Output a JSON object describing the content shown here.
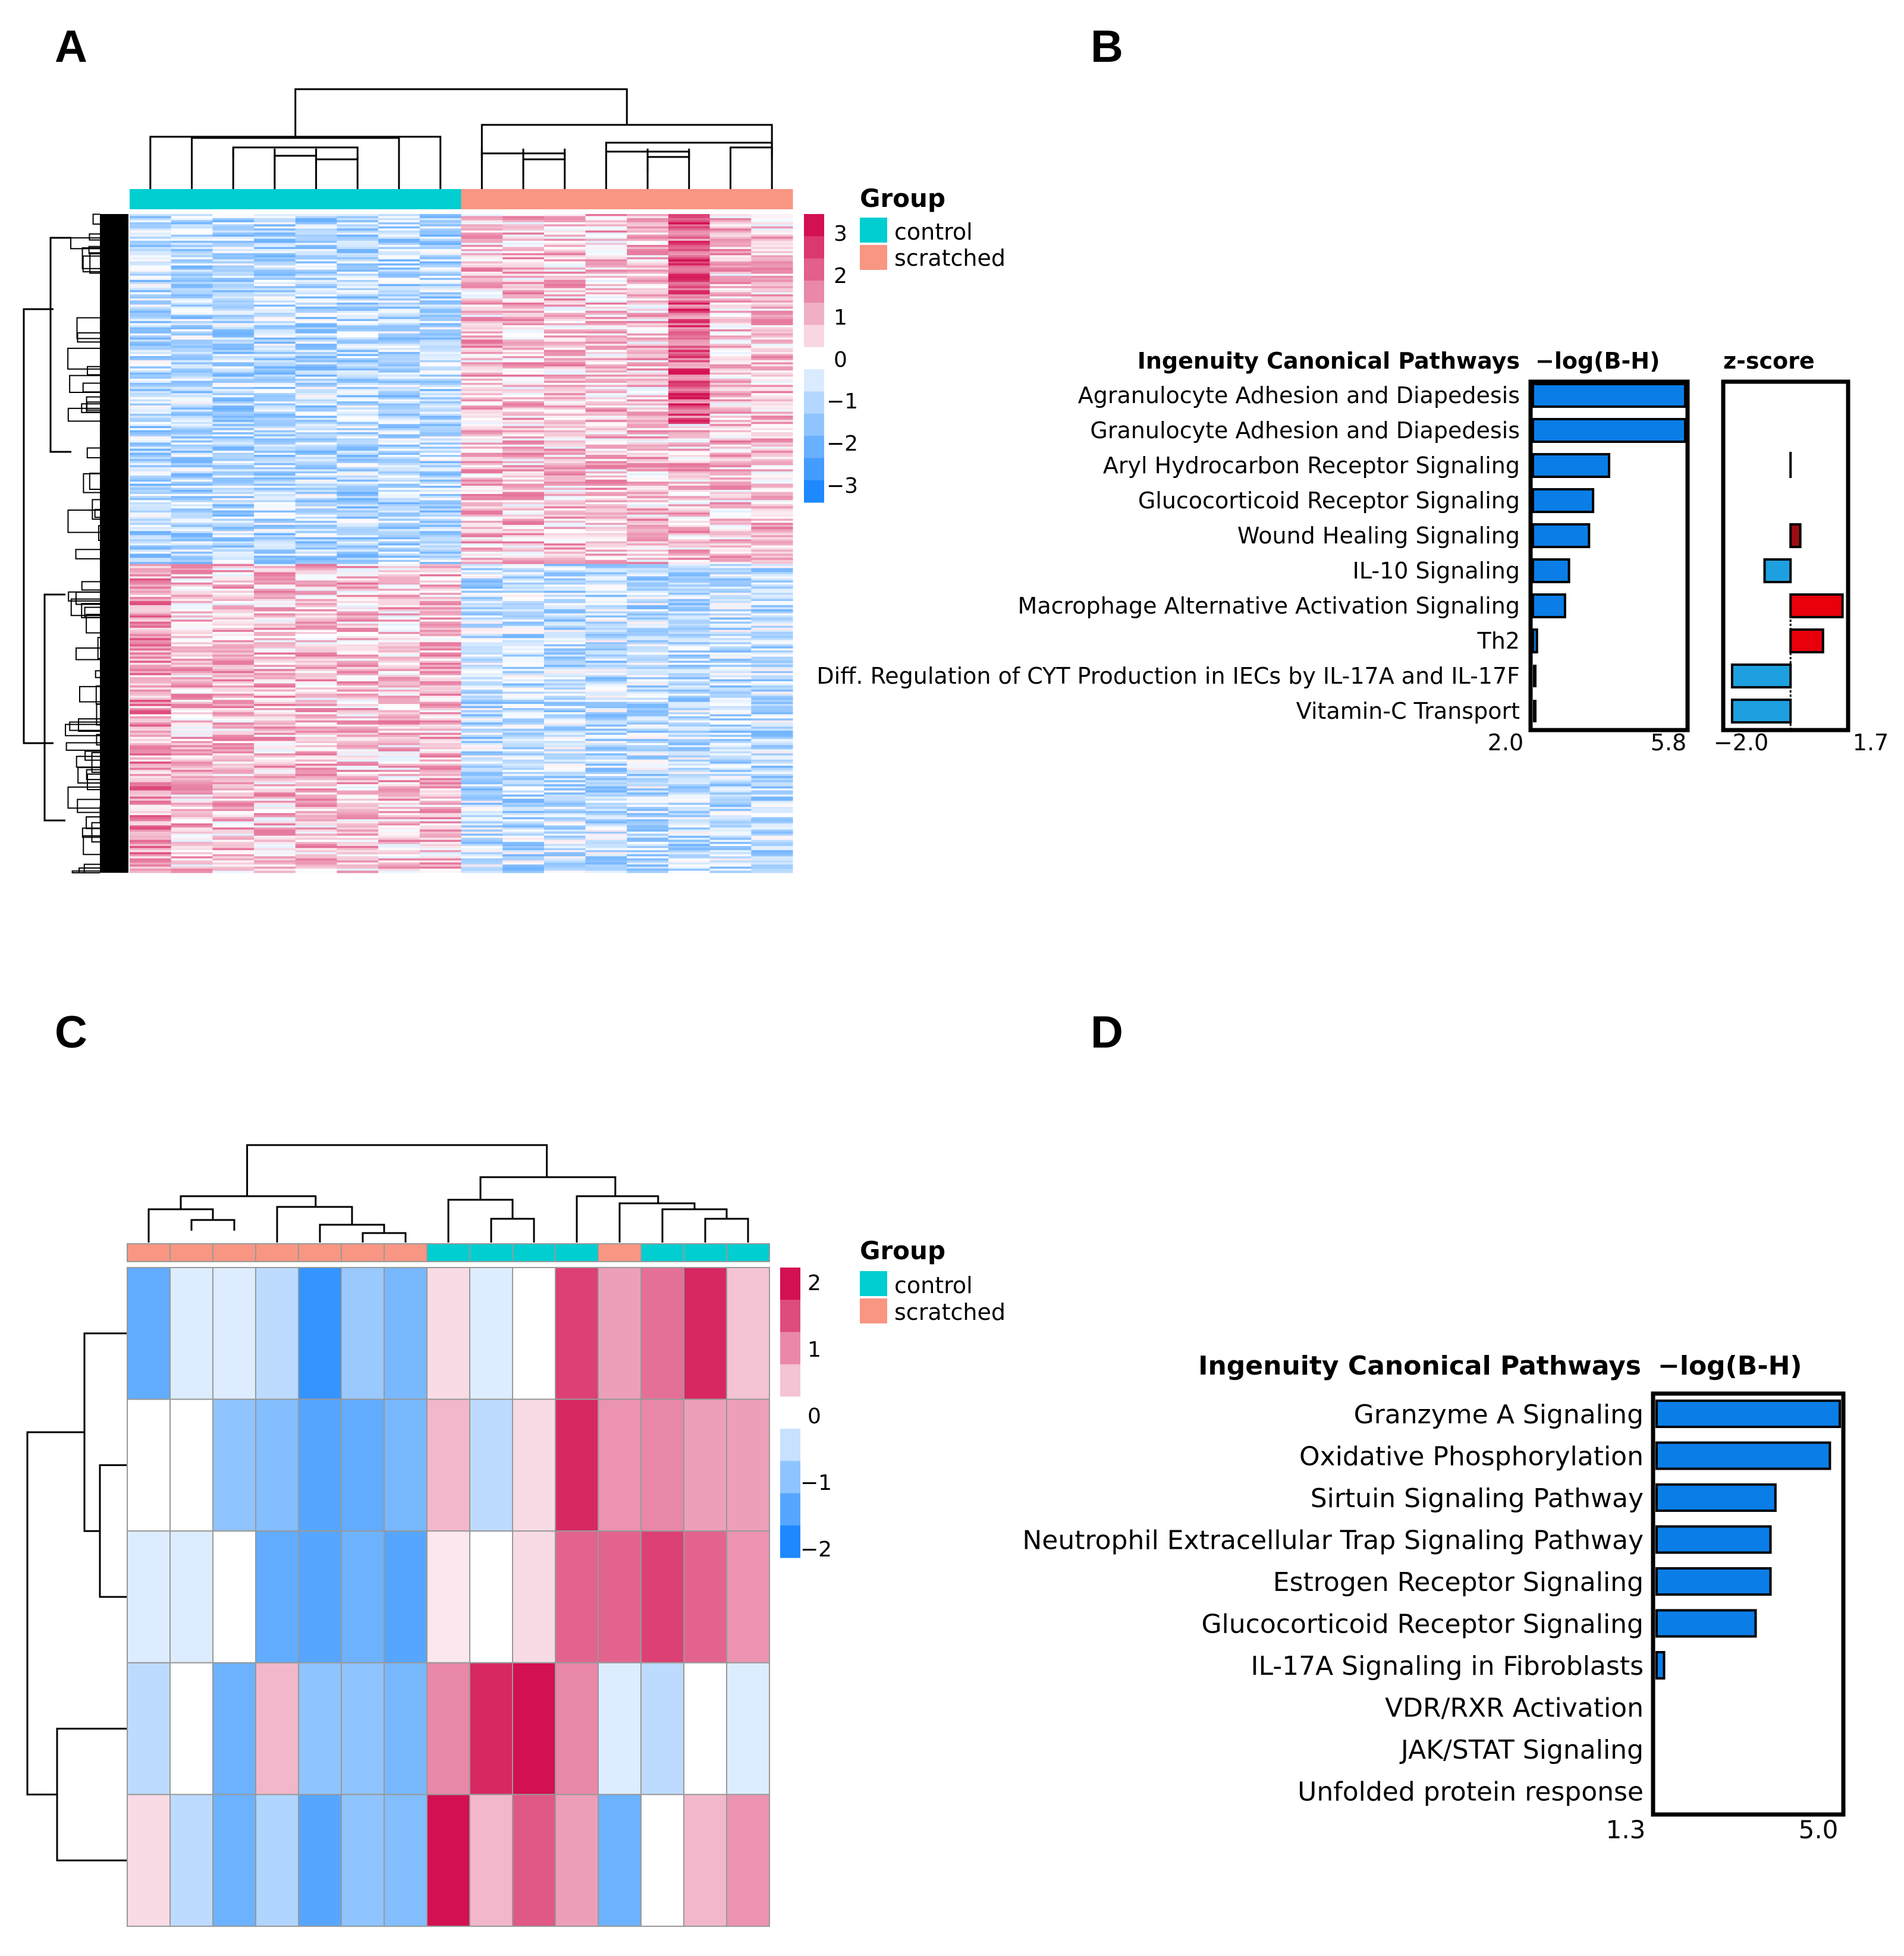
{
  "figure": {
    "panel_letters": [
      "A",
      "B",
      "C",
      "D"
    ]
  },
  "colors": {
    "control": "#00CED1",
    "scratched": "#F89683",
    "bar_blue": "#0A7DE6",
    "bar_red": "#E8000B",
    "bar_dark_red": "#9B0E14",
    "bar_cyan": "#1EA0E0",
    "heat_low": "#1E88FF",
    "heat_mid": "#FFFFFF",
    "heat_high": "#D31051"
  },
  "chart_data": [
    {
      "panel": "A",
      "type": "heatmap",
      "title": "",
      "legend_title": "Group",
      "legend_entries": [
        "control",
        "scratched"
      ],
      "column_groups": [
        "control",
        "control",
        "control",
        "control",
        "control",
        "control",
        "control",
        "control",
        "scratched",
        "scratched",
        "scratched",
        "scratched",
        "scratched",
        "scratched",
        "scratched",
        "scratched"
      ],
      "n_rows": 320,
      "color_scale_ticks": [
        "3",
        "2",
        "1",
        "0",
        "−1",
        "−2",
        "−3"
      ],
      "color_range": [
        -3,
        3
      ],
      "pattern": "upper ~53% of rows: control low / scratched high; lower ~47% of rows: control high / scratched low"
    },
    {
      "panel": "B",
      "type": "bar",
      "header": "Ingenuity Canonical Pathways",
      "categories": [
        "Agranulocyte Adhesion and Diapedesis",
        "Granulocyte Adhesion and Diapedesis",
        "Aryl Hydrocarbon Receptor Signaling",
        "Glucocorticoid Receptor Signaling",
        "Wound Healing Signaling",
        "IL-10 Signaling",
        "Macrophage Alternative Activation Signaling",
        "Th2",
        "Diff. Regulation of CYT Production in IECs by IL-17A and IL-17F",
        "Vitamin-C Transport"
      ],
      "series": [
        {
          "name": "−log(B-H)",
          "values": [
            5.8,
            5.8,
            3.9,
            3.5,
            3.4,
            2.9,
            2.8,
            2.1,
            2.0,
            2.0
          ],
          "xlim": [
            2.0,
            5.8
          ],
          "tick_labels": [
            "2.0",
            "5.8"
          ]
        },
        {
          "name": "z-score",
          "values": [
            null,
            null,
            0.0,
            null,
            0.3,
            -0.8,
            1.6,
            1.0,
            -1.8,
            -1.8
          ],
          "xlim": [
            -2.0,
            1.7
          ],
          "tick_labels": [
            "−2.0",
            "1.7"
          ]
        }
      ]
    },
    {
      "panel": "C",
      "type": "heatmap",
      "title": "",
      "legend_title": "Group",
      "legend_entries": [
        "control",
        "scratched"
      ],
      "column_groups": [
        "scratched",
        "scratched",
        "scratched",
        "scratched",
        "scratched",
        "scratched",
        "scratched",
        "control",
        "control",
        "control",
        "control",
        "scratched",
        "control",
        "control",
        "control"
      ],
      "color_scale_ticks": [
        "2",
        "1",
        "0",
        "−1",
        "−2"
      ],
      "color_range": [
        -2,
        2
      ],
      "values": [
        [
          -1.4,
          -0.3,
          -0.3,
          -0.6,
          -1.8,
          -0.9,
          -1.2,
          0.3,
          -0.3,
          0.0,
          1.6,
          0.8,
          1.2,
          1.8,
          0.5
        ],
        [
          0.0,
          0.0,
          -1.0,
          -1.1,
          -1.5,
          -1.4,
          -1.2,
          0.6,
          -0.6,
          0.3,
          1.8,
          0.9,
          1.0,
          0.8,
          0.8
        ],
        [
          -0.3,
          -0.3,
          0.0,
          -1.4,
          -1.5,
          -1.3,
          -1.5,
          0.2,
          0.0,
          0.3,
          1.3,
          1.3,
          1.6,
          1.3,
          0.9
        ],
        [
          -0.6,
          0.0,
          -1.3,
          0.6,
          -1.0,
          -1.0,
          -1.2,
          1.0,
          1.8,
          2.1,
          1.0,
          -0.3,
          -0.6,
          0.0,
          -0.3
        ],
        [
          0.3,
          -0.6,
          -1.3,
          -0.7,
          -1.5,
          -1.0,
          -1.1,
          2.1,
          0.6,
          1.4,
          0.8,
          -1.3,
          0.0,
          0.6,
          0.9
        ]
      ]
    },
    {
      "panel": "D",
      "type": "bar",
      "header": "Ingenuity Canonical Pathways",
      "categories": [
        "Granzyme A Signaling",
        "Oxidative Phosphorylation",
        "Sirtuin Signaling Pathway",
        "Neutrophil Extracellular Trap Signaling Pathway",
        "Estrogen Receptor Signaling",
        "Glucocorticoid Receptor Signaling",
        "IL-17A Signaling in Fibroblasts",
        "VDR/RXR Activation",
        "JAK/STAT Signaling",
        "Unfolded protein response"
      ],
      "series": [
        {
          "name": "−log(B-H)",
          "values": [
            5.0,
            4.8,
            3.7,
            3.6,
            3.6,
            3.3,
            1.45,
            1.3,
            1.3,
            1.3
          ],
          "xlim": [
            1.3,
            5.0
          ],
          "tick_labels": [
            "1.3",
            "5.0"
          ]
        }
      ]
    }
  ]
}
